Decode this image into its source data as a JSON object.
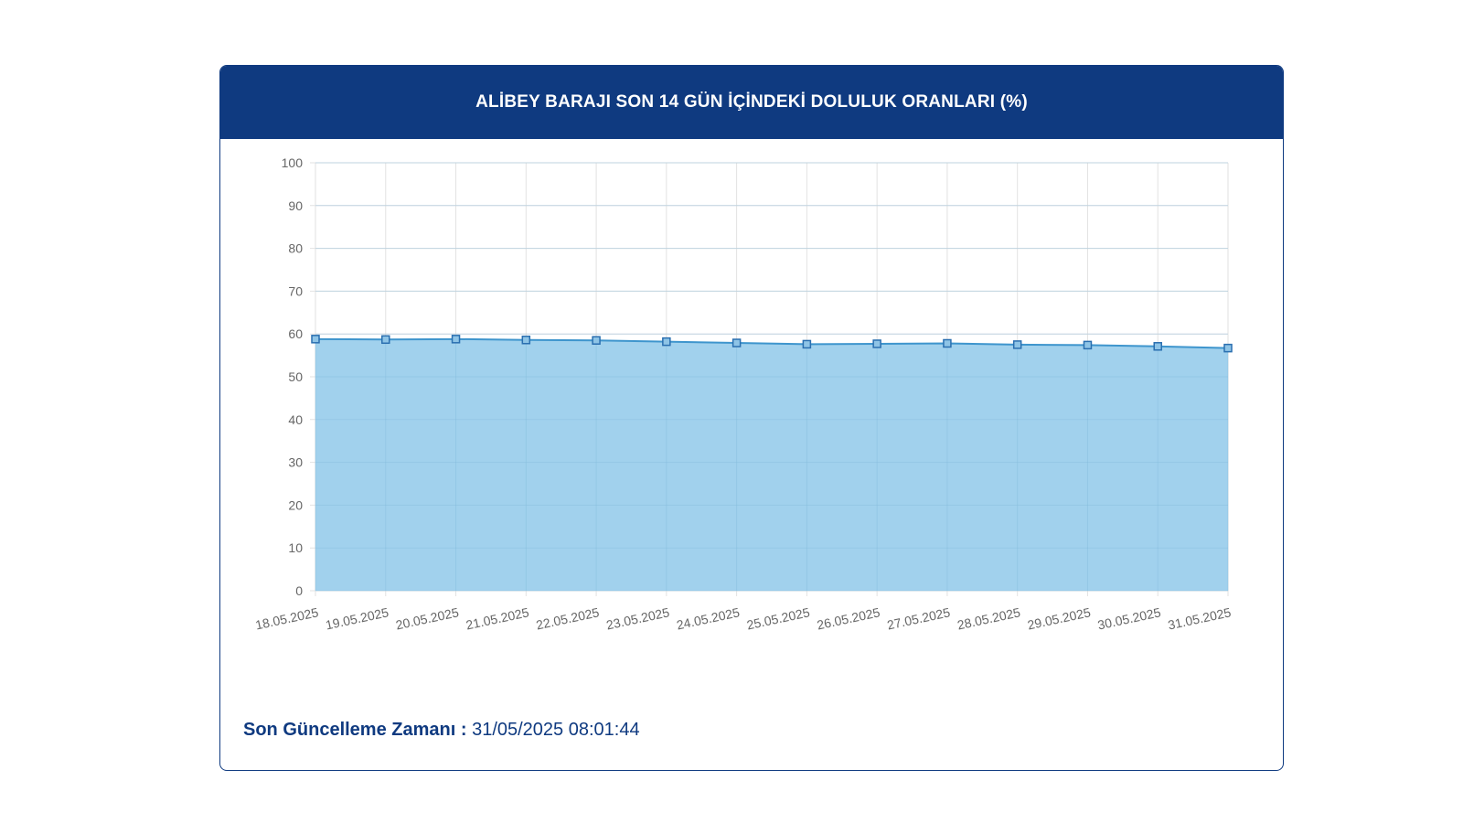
{
  "header": {
    "title": "ALİBEY BARAJI SON 14 GÜN İÇİNDEKİ DOLULUK ORANLARI (%)"
  },
  "footer": {
    "label": "Son Güncelleme Zamanı :",
    "value": "31/05/2025 08:01:44"
  },
  "colors": {
    "header_bg": "#0f3a80",
    "area_fill": "#9ccfec",
    "line": "#3e95cd",
    "marker": "#3a8ed4"
  },
  "chart_data": {
    "type": "area",
    "categories": [
      "18.05.2025",
      "19.05.2025",
      "20.05.2025",
      "21.05.2025",
      "22.05.2025",
      "23.05.2025",
      "24.05.2025",
      "25.05.2025",
      "26.05.2025",
      "27.05.2025",
      "28.05.2025",
      "29.05.2025",
      "30.05.2025",
      "31.05.2025"
    ],
    "series": [
      {
        "values": [
          58.8,
          58.7,
          58.8,
          58.6,
          58.5,
          58.2,
          57.9,
          57.6,
          57.7,
          57.8,
          57.5,
          57.4,
          57.1,
          56.7
        ]
      }
    ],
    "ylim": [
      0,
      100
    ],
    "yticks": [
      0,
      10,
      20,
      30,
      40,
      50,
      60,
      70,
      80,
      90,
      100
    ],
    "grid": true,
    "legend": "none"
  }
}
